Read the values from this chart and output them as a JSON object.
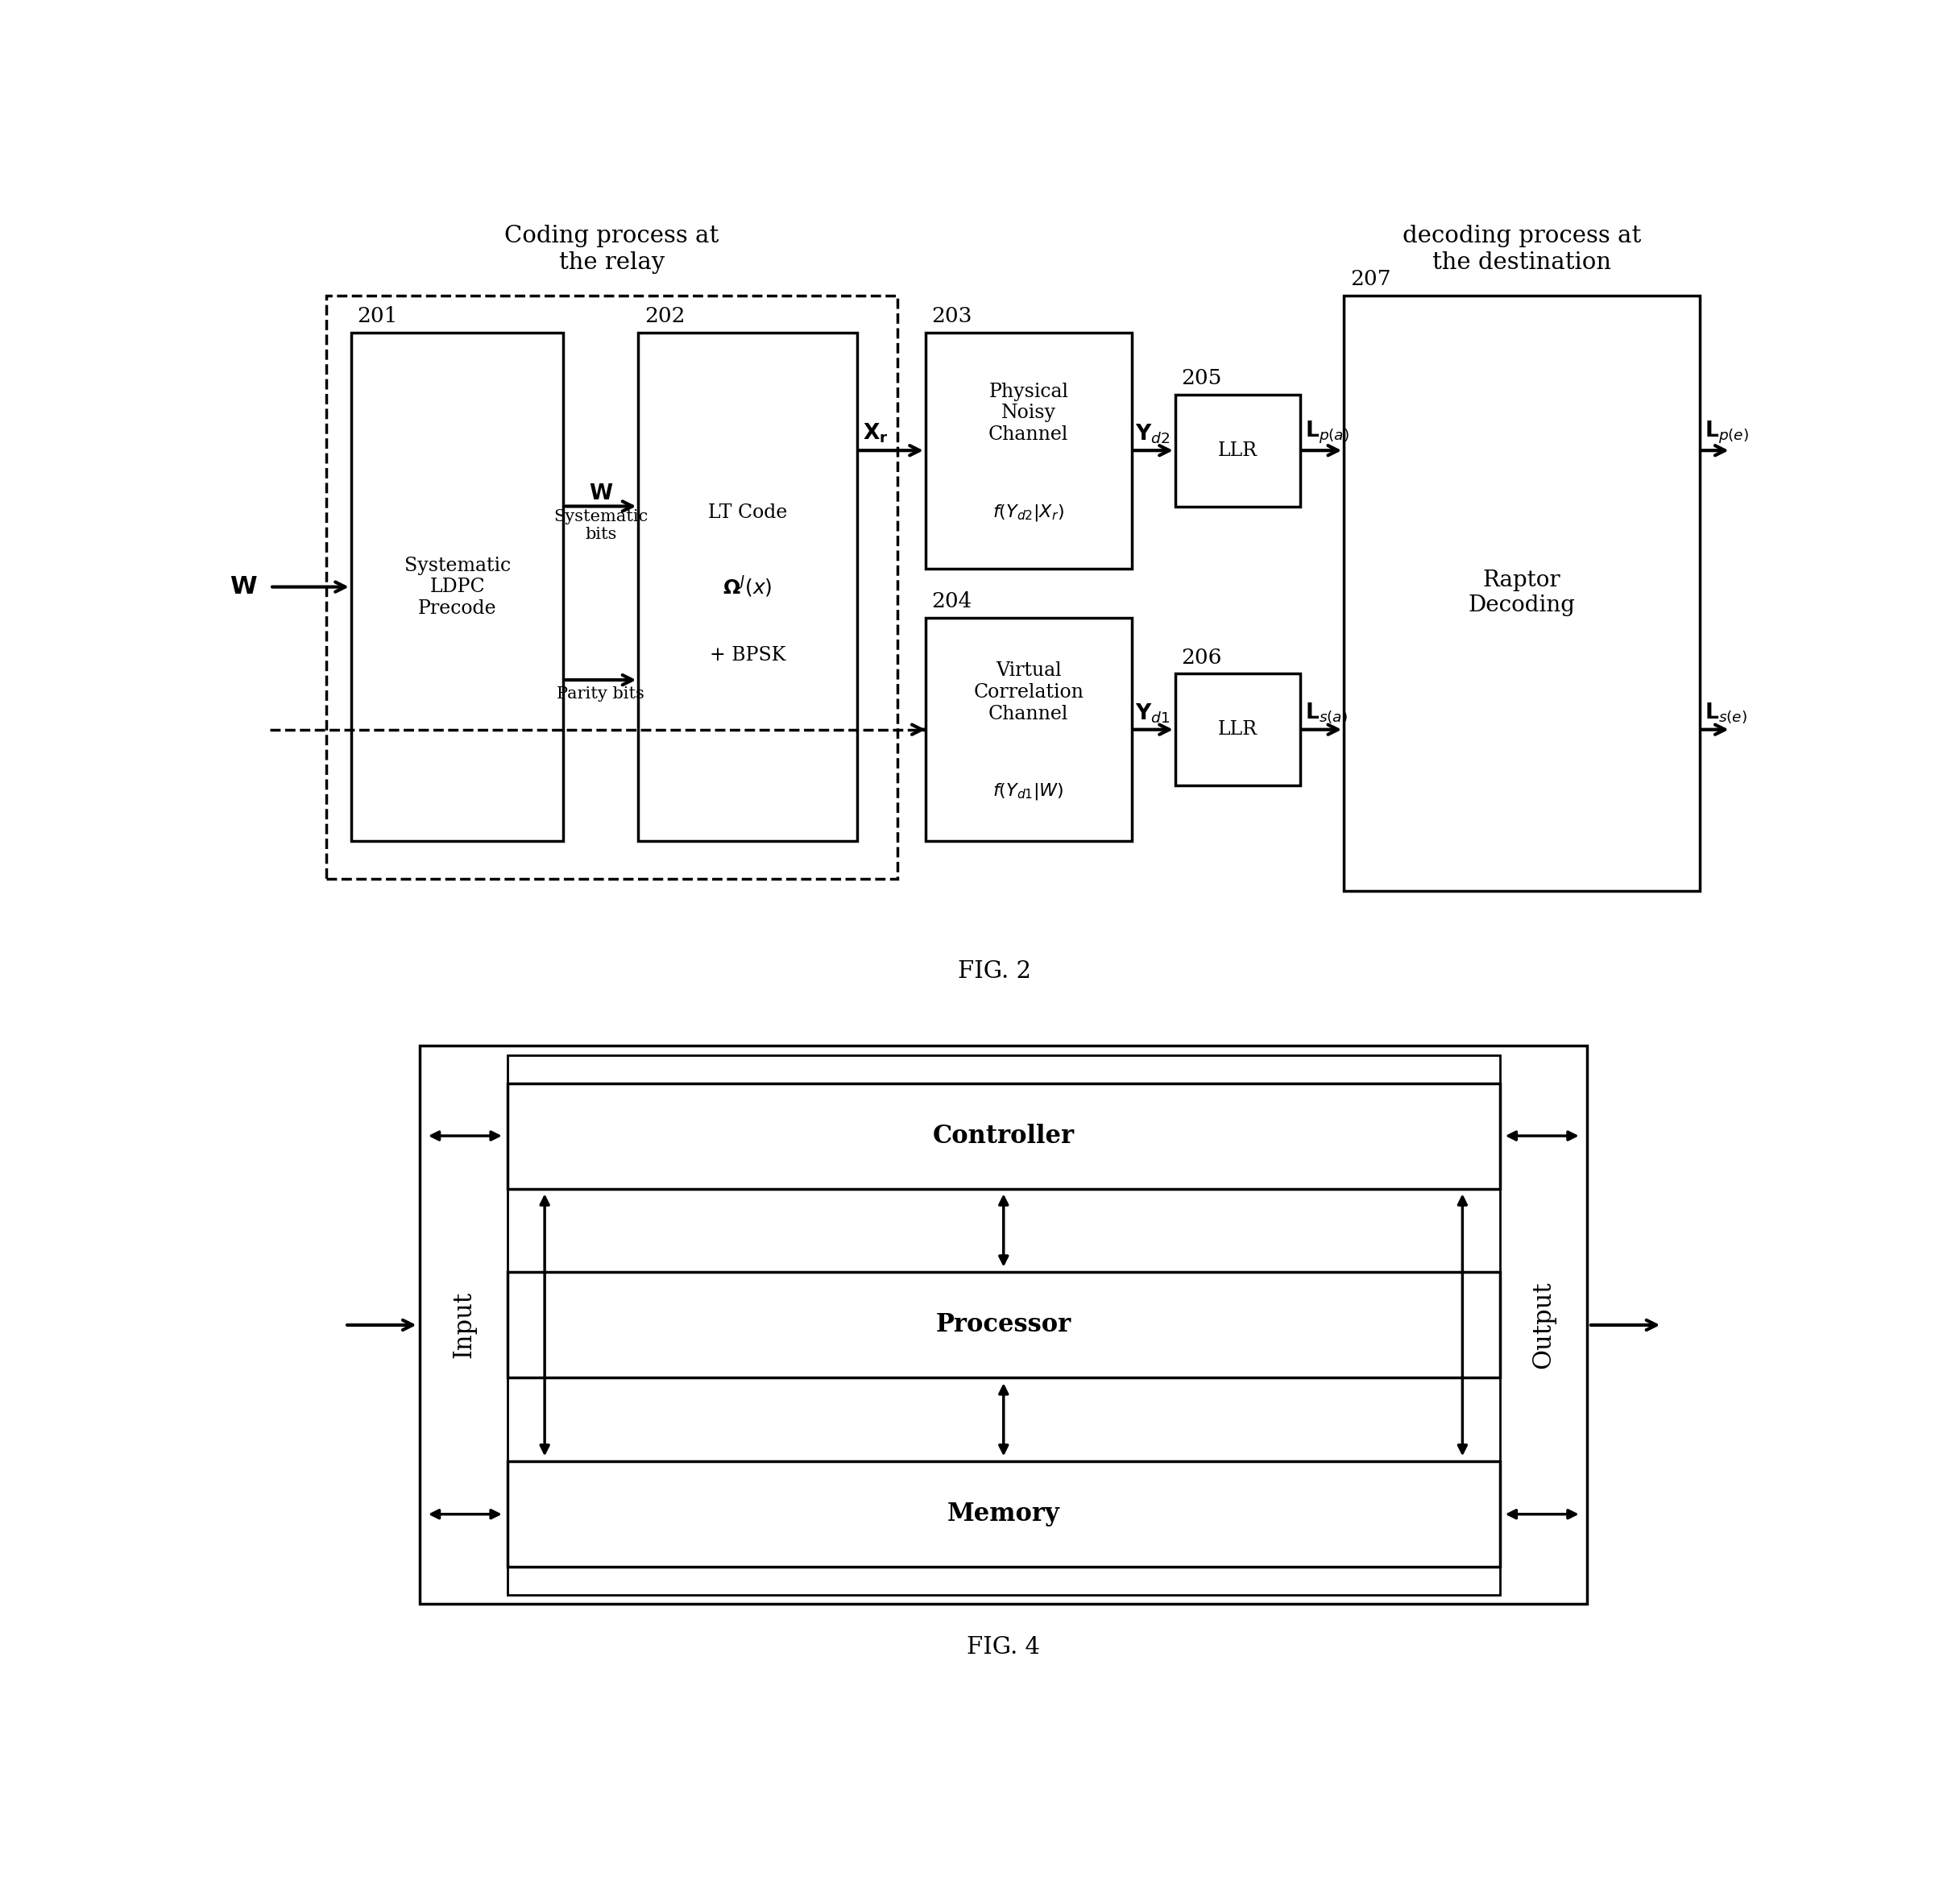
{
  "fig_width": 24.33,
  "fig_height": 23.5,
  "bg_color": "#ffffff",
  "fig1": {
    "title_coding": "Coding process at\nthe relay",
    "title_decoding": "decoding process at\nthe destination",
    "label_201": "201",
    "label_202": "202",
    "label_203": "203",
    "label_204": "204",
    "label_205": "205",
    "label_206": "206",
    "label_207": "207",
    "box201_text": "Systematic\nLDPC\nPrecode",
    "box202_text": "LT Code\n+ BPSK",
    "box203_text": "Physical\nNoisy\nChannel",
    "box203_sub": "f(Y_d2|X_r)",
    "box204_text": "Virtual\nCorrelation\nChannel",
    "box204_sub": "f(Y_d1|W)",
    "box205_text": "LLR",
    "box206_text": "LLR",
    "box207_text": "Raptor\nDecoding",
    "parity_label": "Parity bits",
    "fig_label": "FIG. 2"
  },
  "fig2": {
    "label_controller": "Controller",
    "label_processor": "Processor",
    "label_memory": "Memory",
    "label_input": "Input",
    "label_output": "Output",
    "fig_label": "FIG. 4"
  }
}
